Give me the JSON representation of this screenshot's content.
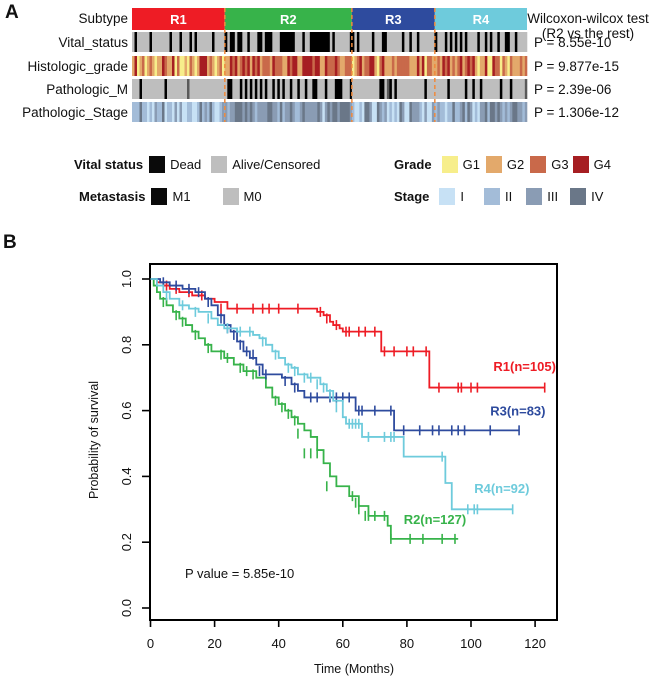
{
  "panels": {
    "a_label": "A",
    "b_label": "B"
  },
  "heatmap": {
    "row_labels": [
      "Subtype",
      "Vital_status",
      "Histologic_grade",
      "Pathologic_M",
      "Pathologic_Stage"
    ],
    "subtypes": [
      {
        "name": "R1",
        "color": "#EE1C25",
        "fraction": 0.282
      },
      {
        "name": "R2",
        "color": "#37B34A",
        "fraction": 0.386
      },
      {
        "name": "R3",
        "color": "#2E4B9E",
        "fraction": 0.252
      },
      {
        "name": "R4",
        "color": "#6ECBDC",
        "fraction": 0.28
      }
    ],
    "test_title_line1": "Wilcoxon-wilcox test",
    "test_title_line2": "(R2 vs the rest)",
    "p_values": [
      "P = 8.55e-10",
      "P = 9.877e-15",
      "P = 2.39e-06",
      "P = 1.306e-12"
    ],
    "colors": {
      "dead": "#000000",
      "alive": "#BEBEBE",
      "m1": "#000000",
      "m0": "#BEBEBE",
      "g1": "#F7EE8B",
      "g2": "#E3A96B",
      "g3": "#C9694A",
      "g4": "#A61E22",
      "stage_i": "#C7E1F5",
      "stage_ii": "#A3BCD8",
      "stage_iii": "#8A9CB4",
      "stage_iv": "#6A7788",
      "divider": "#F08A3C"
    }
  },
  "legend": {
    "vital_status": {
      "title": "Vital status",
      "items": [
        {
          "label": "Dead",
          "color": "#0A0A0A"
        },
        {
          "label": "Alive/Censored",
          "color": "#BEBEBE"
        }
      ]
    },
    "metastasis": {
      "title": "Metastasis",
      "items": [
        {
          "label": "M1",
          "color": "#0A0A0A"
        },
        {
          "label": "M0",
          "color": "#BEBEBE"
        }
      ]
    },
    "grade": {
      "title": "Grade",
      "items": [
        {
          "label": "G1",
          "color": "#F7EE8B"
        },
        {
          "label": "G2",
          "color": "#E3A96B"
        },
        {
          "label": "G3",
          "color": "#C9694A"
        },
        {
          "label": "G4",
          "color": "#A61E22"
        }
      ]
    },
    "stage": {
      "title": "Stage",
      "items": [
        {
          "label": "I",
          "color": "#C7E1F5"
        },
        {
          "label": "II",
          "color": "#A3BCD8"
        },
        {
          "label": "III",
          "color": "#8A9CB4"
        },
        {
          "label": "IV",
          "color": "#6A7788"
        }
      ]
    }
  },
  "chart_data": {
    "type": "line",
    "subtype": "kaplan-meier",
    "title": "",
    "xlabel": "Time (Months)",
    "ylabel": "Probability of survival",
    "xlim": [
      0,
      127
    ],
    "ylim": [
      0,
      1.0
    ],
    "xticks": [
      0,
      20,
      40,
      60,
      80,
      100,
      120
    ],
    "yticks": [
      "0.0",
      "0.2",
      "0.4",
      "0.6",
      "0.8",
      "1.0"
    ],
    "annotation": "P value = 5.85e-10",
    "series": [
      {
        "name": "R1(n=105)",
        "color": "#EE1C25",
        "steps": [
          [
            0,
            1.0
          ],
          [
            2,
            0.99
          ],
          [
            4,
            0.98
          ],
          [
            6,
            0.97
          ],
          [
            9,
            0.96
          ],
          [
            13,
            0.95
          ],
          [
            17,
            0.94
          ],
          [
            20,
            0.93
          ],
          [
            24,
            0.91
          ],
          [
            52,
            0.9
          ],
          [
            54,
            0.89
          ],
          [
            56,
            0.87
          ],
          [
            57,
            0.86
          ],
          [
            59,
            0.85
          ],
          [
            60,
            0.84
          ],
          [
            72,
            0.78
          ],
          [
            87,
            0.67
          ],
          [
            123,
            0.67
          ]
        ],
        "censor": [
          [
            5,
            0.98
          ],
          [
            8,
            0.97
          ],
          [
            12,
            0.96
          ],
          [
            16,
            0.95
          ],
          [
            22,
            0.91
          ],
          [
            27,
            0.91
          ],
          [
            32,
            0.91
          ],
          [
            35,
            0.91
          ],
          [
            37,
            0.91
          ],
          [
            40,
            0.91
          ],
          [
            46,
            0.91
          ],
          [
            53,
            0.9
          ],
          [
            55,
            0.88
          ],
          [
            58,
            0.86
          ],
          [
            61,
            0.84
          ],
          [
            62,
            0.84
          ],
          [
            65,
            0.84
          ],
          [
            67,
            0.84
          ],
          [
            70,
            0.84
          ],
          [
            73,
            0.78
          ],
          [
            76,
            0.78
          ],
          [
            80,
            0.78
          ],
          [
            82,
            0.78
          ],
          [
            86,
            0.78
          ],
          [
            90,
            0.67
          ],
          [
            96,
            0.67
          ],
          [
            97,
            0.67
          ],
          [
            100,
            0.67
          ],
          [
            102,
            0.67
          ],
          [
            123,
            0.67
          ]
        ]
      },
      {
        "name": "R2(n=127)",
        "color": "#37B34A",
        "steps": [
          [
            0,
            1.0
          ],
          [
            1,
            0.98
          ],
          [
            2,
            0.96
          ],
          [
            3,
            0.94
          ],
          [
            5,
            0.92
          ],
          [
            7,
            0.9
          ],
          [
            9,
            0.88
          ],
          [
            11,
            0.86
          ],
          [
            13,
            0.84
          ],
          [
            15,
            0.82
          ],
          [
            17,
            0.8
          ],
          [
            19,
            0.78
          ],
          [
            23,
            0.76
          ],
          [
            26,
            0.74
          ],
          [
            29,
            0.72
          ],
          [
            33,
            0.7
          ],
          [
            36,
            0.67
          ],
          [
            38,
            0.64
          ],
          [
            40,
            0.62
          ],
          [
            42,
            0.6
          ],
          [
            44,
            0.58
          ],
          [
            46,
            0.56
          ],
          [
            48,
            0.54
          ],
          [
            50,
            0.52
          ],
          [
            52,
            0.48
          ],
          [
            54,
            0.44
          ],
          [
            56,
            0.4
          ],
          [
            58,
            0.37
          ],
          [
            62,
            0.34
          ],
          [
            65,
            0.31
          ],
          [
            68,
            0.28
          ],
          [
            74,
            0.25
          ],
          [
            75,
            0.21
          ],
          [
            96,
            0.21
          ]
        ],
        "censor": [
          [
            4,
            0.93
          ],
          [
            8,
            0.89
          ],
          [
            10,
            0.87
          ],
          [
            14,
            0.83
          ],
          [
            18,
            0.79
          ],
          [
            22,
            0.77
          ],
          [
            24,
            0.76
          ],
          [
            28,
            0.73
          ],
          [
            30,
            0.72
          ],
          [
            32,
            0.71
          ],
          [
            39,
            0.63
          ],
          [
            41,
            0.61
          ],
          [
            43,
            0.59
          ],
          [
            45,
            0.57
          ],
          [
            46,
            0.53
          ],
          [
            48,
            0.47
          ],
          [
            50,
            0.47
          ],
          [
            52,
            0.47
          ],
          [
            55,
            0.37
          ],
          [
            63,
            0.34
          ],
          [
            64,
            0.32
          ],
          [
            65,
            0.3
          ],
          [
            67,
            0.28
          ],
          [
            68,
            0.28
          ],
          [
            70,
            0.28
          ],
          [
            73,
            0.28
          ],
          [
            75,
            0.21
          ],
          [
            81,
            0.21
          ],
          [
            85,
            0.21
          ],
          [
            91,
            0.21
          ],
          [
            95,
            0.21
          ]
        ]
      },
      {
        "name": "R3(n=83)",
        "color": "#2E4B9E",
        "steps": [
          [
            0,
            1.0
          ],
          [
            3,
            0.99
          ],
          [
            6,
            0.98
          ],
          [
            10,
            0.97
          ],
          [
            14,
            0.96
          ],
          [
            17,
            0.94
          ],
          [
            19,
            0.92
          ],
          [
            21,
            0.89
          ],
          [
            23,
            0.86
          ],
          [
            25,
            0.84
          ],
          [
            27,
            0.81
          ],
          [
            29,
            0.78
          ],
          [
            31,
            0.76
          ],
          [
            33,
            0.74
          ],
          [
            35,
            0.71
          ],
          [
            41,
            0.7
          ],
          [
            44,
            0.68
          ],
          [
            46,
            0.66
          ],
          [
            48,
            0.64
          ],
          [
            64,
            0.6
          ],
          [
            76,
            0.54
          ],
          [
            115,
            0.54
          ]
        ],
        "censor": [
          [
            4,
            0.99
          ],
          [
            8,
            0.98
          ],
          [
            12,
            0.97
          ],
          [
            15,
            0.96
          ],
          [
            18,
            0.93
          ],
          [
            22,
            0.88
          ],
          [
            24,
            0.85
          ],
          [
            26,
            0.83
          ],
          [
            28,
            0.8
          ],
          [
            30,
            0.78
          ],
          [
            32,
            0.77
          ],
          [
            34,
            0.72
          ],
          [
            36,
            0.71
          ],
          [
            42,
            0.69
          ],
          [
            45,
            0.67
          ],
          [
            50,
            0.64
          ],
          [
            52,
            0.64
          ],
          [
            56,
            0.64
          ],
          [
            58,
            0.64
          ],
          [
            60,
            0.64
          ],
          [
            62,
            0.64
          ],
          [
            65,
            0.6
          ],
          [
            66,
            0.6
          ],
          [
            70,
            0.6
          ],
          [
            75,
            0.6
          ],
          [
            79,
            0.54
          ],
          [
            84,
            0.54
          ],
          [
            88,
            0.54
          ],
          [
            90,
            0.54
          ],
          [
            94,
            0.54
          ],
          [
            96,
            0.54
          ],
          [
            98,
            0.54
          ],
          [
            106,
            0.54
          ],
          [
            115,
            0.54
          ]
        ]
      },
      {
        "name": "R4(n=92)",
        "color": "#6ECBDC",
        "steps": [
          [
            0,
            1.0
          ],
          [
            2,
            0.98
          ],
          [
            4,
            0.96
          ],
          [
            6,
            0.94
          ],
          [
            9,
            0.92
          ],
          [
            12,
            0.91
          ],
          [
            15,
            0.9
          ],
          [
            19,
            0.88
          ],
          [
            21,
            0.86
          ],
          [
            23,
            0.85
          ],
          [
            27,
            0.84
          ],
          [
            32,
            0.83
          ],
          [
            34,
            0.82
          ],
          [
            36,
            0.8
          ],
          [
            38,
            0.78
          ],
          [
            40,
            0.76
          ],
          [
            42,
            0.74
          ],
          [
            44,
            0.73
          ],
          [
            46,
            0.71
          ],
          [
            49,
            0.7
          ],
          [
            53,
            0.68
          ],
          [
            55,
            0.66
          ],
          [
            57,
            0.63
          ],
          [
            60,
            0.58
          ],
          [
            61,
            0.56
          ],
          [
            66,
            0.52
          ],
          [
            79,
            0.46
          ],
          [
            92,
            0.38
          ],
          [
            94,
            0.3
          ],
          [
            113,
            0.3
          ]
        ],
        "censor": [
          [
            5,
            0.95
          ],
          [
            10,
            0.92
          ],
          [
            14,
            0.9
          ],
          [
            18,
            0.88
          ],
          [
            24,
            0.85
          ],
          [
            28,
            0.84
          ],
          [
            31,
            0.84
          ],
          [
            35,
            0.81
          ],
          [
            39,
            0.77
          ],
          [
            43,
            0.73
          ],
          [
            45,
            0.72
          ],
          [
            48,
            0.7
          ],
          [
            50,
            0.7
          ],
          [
            52,
            0.68
          ],
          [
            54,
            0.67
          ],
          [
            56,
            0.65
          ],
          [
            58,
            0.61
          ],
          [
            62,
            0.56
          ],
          [
            63,
            0.56
          ],
          [
            64,
            0.56
          ],
          [
            65,
            0.56
          ],
          [
            68,
            0.52
          ],
          [
            73,
            0.52
          ],
          [
            75,
            0.52
          ],
          [
            76,
            0.52
          ],
          [
            91,
            0.46
          ],
          [
            99,
            0.3
          ],
          [
            101,
            0.3
          ],
          [
            102,
            0.3
          ],
          [
            113,
            0.3
          ]
        ]
      }
    ],
    "labels": [
      {
        "text": "R1(n=105)",
        "series": "R1(n=105)",
        "x": 107,
        "y": 0.72
      },
      {
        "text": "R3(n=83)",
        "series": "R3(n=83)",
        "x": 106,
        "y": 0.585
      },
      {
        "text": "R4(n=92)",
        "series": "R4(n=92)",
        "x": 101,
        "y": 0.35
      },
      {
        "text": "R2(n=127)",
        "series": "R2(n=127)",
        "x": 79,
        "y": 0.255
      }
    ]
  }
}
